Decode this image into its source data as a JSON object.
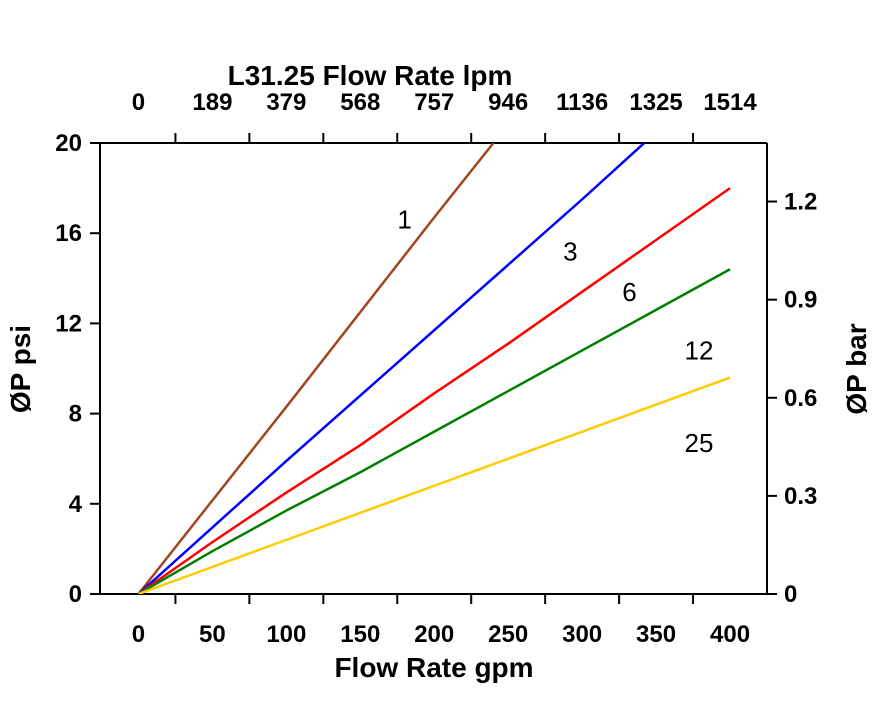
{
  "chart_data": {
    "type": "line",
    "title": "L31.25 Flow Rate lpm",
    "xlabel": "Flow Rate gpm",
    "ylabel": "ØP psi",
    "y2label": "ØP bar",
    "xlim": [
      -26,
      425
    ],
    "ylim": [
      0,
      20
    ],
    "y2lim": [
      0,
      1.379
    ],
    "grid": false,
    "x_ticks": [
      "0",
      "50",
      "100",
      "150",
      "200",
      "250",
      "300",
      "350",
      "400"
    ],
    "x_tick_values": [
      0,
      50,
      100,
      150,
      200,
      250,
      300,
      350,
      400
    ],
    "top_ticks": [
      "0",
      "189",
      "379",
      "568",
      "757",
      "946",
      "1136",
      "1325",
      "1514"
    ],
    "y_ticks": [
      "0",
      "4",
      "8",
      "12",
      "16",
      "20"
    ],
    "y_tick_values": [
      0,
      4,
      8,
      12,
      16,
      20
    ],
    "y2_ticks": [
      "0",
      "0.3",
      "0.6",
      "0.9",
      "1.2"
    ],
    "y2_tick_values": [
      0,
      0.3,
      0.6,
      0.9,
      1.2
    ],
    "series": [
      {
        "name": "1",
        "color": "#a0461e",
        "x": [
          0,
          100,
          200,
          240
        ],
        "y": [
          0,
          8.3,
          16.7,
          20
        ],
        "label_at": [
          180,
          16.2
        ]
      },
      {
        "name": "3",
        "color": "#0000ff",
        "x": [
          0,
          100,
          200,
          300,
          342
        ],
        "y": [
          0,
          5.9,
          11.7,
          17.5,
          20
        ],
        "label_at": [
          292,
          14.8
        ]
      },
      {
        "name": "6",
        "color": "#ff0000",
        "x": [
          0,
          50,
          100,
          150,
          200,
          250,
          300,
          350,
          400
        ],
        "y": [
          0,
          2.3,
          4.5,
          6.6,
          8.9,
          11.1,
          13.4,
          15.7,
          18.0
        ],
        "label_at": [
          332,
          13
        ]
      },
      {
        "name": "12",
        "color": "#008000",
        "x": [
          0,
          50,
          100,
          150,
          200,
          250,
          300,
          350,
          400
        ],
        "y": [
          0,
          1.9,
          3.7,
          5.4,
          7.2,
          9.0,
          10.8,
          12.6,
          14.4
        ],
        "label_at": [
          379,
          10.4
        ]
      },
      {
        "name": "25",
        "color": "#ffcc00",
        "x": [
          0,
          100,
          200,
          300,
          400
        ],
        "y": [
          0,
          2.4,
          4.8,
          7.2,
          9.6
        ],
        "label_at": [
          379,
          6.3
        ]
      }
    ]
  }
}
